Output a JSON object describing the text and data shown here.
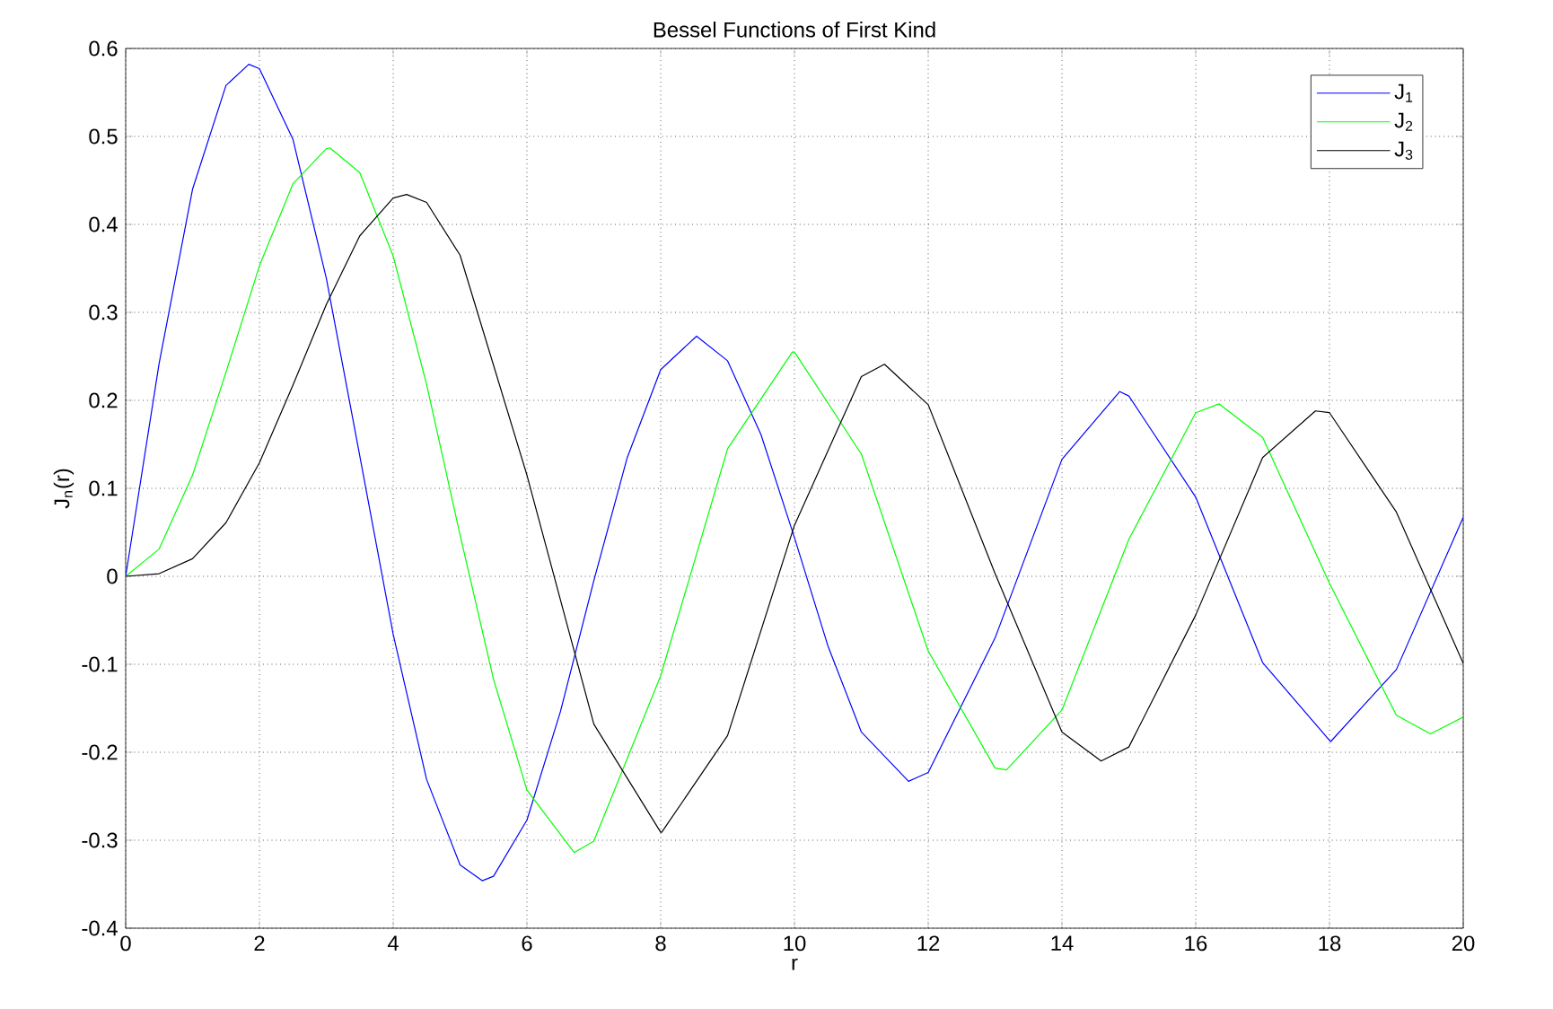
{
  "chart_data": {
    "type": "line",
    "title": "Bessel Functions of First Kind",
    "xlabel": "r",
    "ylabel": "J$_{n}$(r)",
    "xlim": [
      0,
      20
    ],
    "ylim": [
      -0.4,
      0.6
    ],
    "xticks": [
      0,
      2,
      4,
      6,
      8,
      10,
      12,
      14,
      16,
      18,
      20
    ],
    "yticks": [
      -0.4,
      -0.3,
      -0.2,
      -0.1,
      0,
      0.1,
      0.2,
      0.3,
      0.4,
      0.5,
      0.6
    ],
    "grid": true,
    "legend": "top right",
    "marker": "none",
    "line_style": "solid",
    "series": [
      {
        "name": "J$_{1}$",
        "color": "#0000ff",
        "x": [
          0,
          0.5,
          1,
          1.5,
          1.841,
          2,
          2.5,
          3,
          3.5,
          4,
          4.5,
          5,
          5.331,
          5.5,
          6,
          6.5,
          7,
          7.5,
          8,
          8.536,
          9,
          9.5,
          10,
          10.5,
          11,
          11.706,
          12,
          13,
          14,
          14.864,
          15,
          16,
          17,
          18.016,
          19,
          20
        ],
        "values": [
          0,
          0.242,
          0.44,
          0.558,
          0.582,
          0.577,
          0.497,
          0.339,
          0.137,
          -0.066,
          -0.231,
          -0.328,
          -0.346,
          -0.341,
          -0.277,
          -0.154,
          -0.005,
          0.135,
          0.235,
          0.273,
          0.245,
          0.161,
          0.044,
          -0.079,
          -0.177,
          -0.233,
          -0.223,
          -0.07,
          0.133,
          0.21,
          0.205,
          0.09,
          -0.098,
          -0.188,
          -0.106,
          0.067
        ]
      },
      {
        "name": "J$_{2}$",
        "color": "#00ff00",
        "x": [
          0,
          0.5,
          1,
          1.5,
          2,
          2.5,
          3,
          3.054,
          3.5,
          4,
          4.5,
          5,
          5.5,
          6,
          6.706,
          7,
          8,
          9,
          9.969,
          10,
          11,
          12,
          13,
          13.17,
          14,
          15,
          16,
          16.35,
          17,
          18,
          19,
          19.51,
          20
        ],
        "values": [
          0,
          0.031,
          0.115,
          0.232,
          0.353,
          0.446,
          0.486,
          0.487,
          0.459,
          0.364,
          0.218,
          0.047,
          -0.117,
          -0.243,
          -0.314,
          -0.301,
          -0.113,
          0.145,
          0.255,
          0.255,
          0.139,
          -0.085,
          -0.218,
          -0.22,
          -0.152,
          0.042,
          0.186,
          0.196,
          0.158,
          -0.008,
          -0.158,
          -0.179,
          -0.16
        ]
      },
      {
        "name": "J$_{3}$",
        "color": "#000000",
        "x": [
          0,
          0.5,
          1,
          1.5,
          2,
          2.5,
          3,
          3.5,
          4,
          4.201,
          4.5,
          5,
          6,
          7,
          8,
          8.015,
          9,
          10,
          11,
          11.346,
          12,
          13,
          14,
          14.586,
          15,
          16,
          17,
          17.79,
          18,
          19,
          20
        ],
        "values": [
          0,
          0.003,
          0.02,
          0.061,
          0.129,
          0.217,
          0.309,
          0.387,
          0.43,
          0.434,
          0.425,
          0.365,
          0.115,
          -0.168,
          -0.291,
          -0.291,
          -0.181,
          0.058,
          0.227,
          0.241,
          0.195,
          0.003,
          -0.177,
          -0.21,
          -0.194,
          -0.044,
          0.135,
          0.188,
          0.186,
          0.073,
          -0.099
        ]
      }
    ]
  }
}
